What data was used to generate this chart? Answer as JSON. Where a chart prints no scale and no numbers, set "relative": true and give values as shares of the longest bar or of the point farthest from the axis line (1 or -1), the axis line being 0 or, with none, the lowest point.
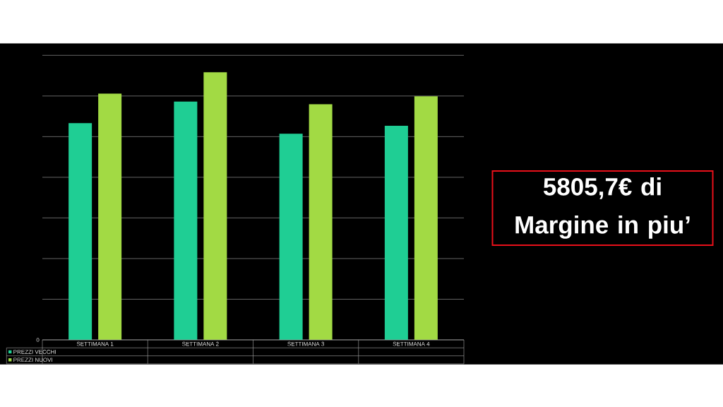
{
  "chart_data": {
    "type": "bar",
    "categories": [
      "SETTIMANA 1",
      "SETTIMANA 2",
      "SETTIMANA 3",
      "SETTIMANA 4"
    ],
    "series": [
      {
        "name": "PREZZI VECCHI",
        "color": "#1fce94",
        "values": [
          0.81,
          0.89,
          0.77,
          0.8
        ]
      },
      {
        "name": "PREZZI NUOVI",
        "color": "#a2da44",
        "values": [
          0.92,
          1,
          0.88,
          0.91
        ]
      }
    ],
    "relative": true,
    "grid": "y",
    "legend": "bottom",
    "annotations": [
      "0",
      "5805,7€ di Margine in piu’"
    ]
  }
}
